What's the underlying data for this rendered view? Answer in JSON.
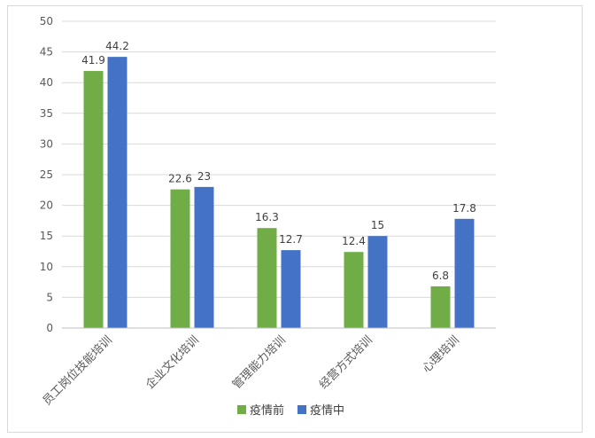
{
  "chart_data": {
    "type": "bar",
    "categories": [
      "员工岗位技能培训",
      "企业文化培训",
      "管理能力培训",
      "经营方式培训",
      "心理培训"
    ],
    "series": [
      {
        "name": "疫情前",
        "values": [
          41.9,
          22.6,
          16.3,
          12.4,
          6.8
        ],
        "color": "#70ad47"
      },
      {
        "name": "疫情中",
        "values": [
          44.2,
          23,
          12.7,
          15,
          17.8
        ],
        "color": "#4472c4"
      }
    ],
    "ylim": [
      0,
      50
    ],
    "yticks": [
      0,
      5,
      10,
      15,
      20,
      25,
      30,
      35,
      40,
      45,
      50
    ],
    "grid": true,
    "legend_position": "bottom",
    "title": "",
    "xlabel": "",
    "ylabel": ""
  }
}
